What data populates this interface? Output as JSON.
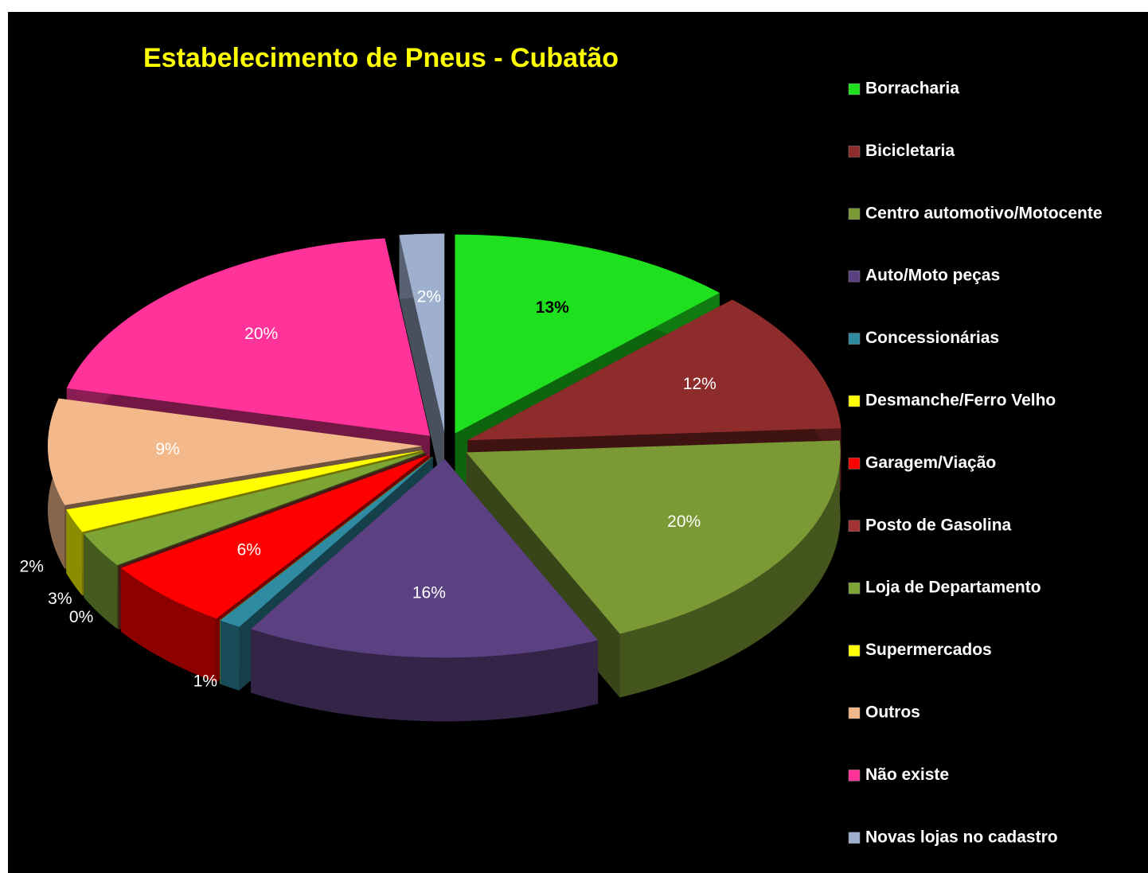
{
  "chart_data": {
    "type": "pie",
    "title": "Estabelecimento de Pneus - Cubatão",
    "categories": [
      "Borracharia",
      "Bicicletaria",
      "Centro automotivo/Motocente",
      "Auto/Moto peças",
      "Concessionárias",
      "Desmanche/Ferro Velho",
      "Garagem/Viação",
      "Posto de Gasolina",
      "Loja de Departamento",
      "Supermercados",
      "Outros",
      "Não existe",
      "Novas lojas no cadastro"
    ],
    "values": [
      13,
      12,
      20,
      16,
      1,
      0,
      6,
      0,
      3,
      2,
      9,
      20,
      2
    ],
    "value_labels": [
      "13%",
      "12%",
      "20%",
      "16%",
      "1%",
      null,
      "6%",
      "0%",
      "3%",
      "2%",
      "9%",
      "20%",
      "2%"
    ],
    "colors": [
      "#1ee01e",
      "#8e2b2b",
      "#7b9a35",
      "#5c4182",
      "#2e8ba2",
      "#ffff00",
      "#ff0000",
      "#a33232",
      "#7da536",
      "#ffff00",
      "#f4b98b",
      "#ff3399",
      "#9fb0cf"
    ],
    "legend": "right"
  }
}
